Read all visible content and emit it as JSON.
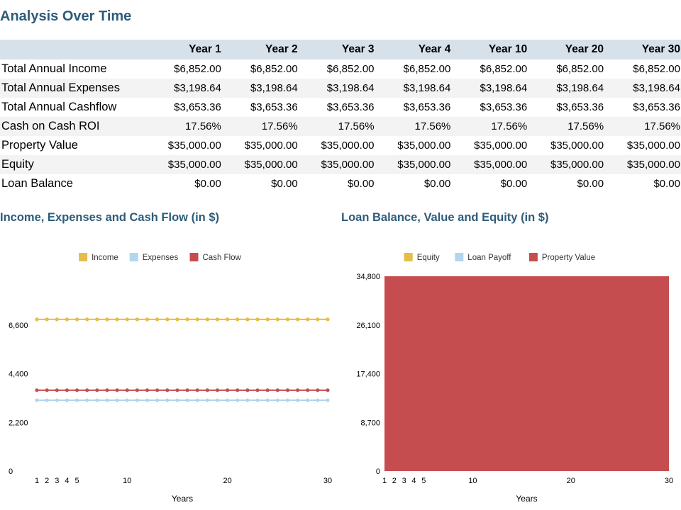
{
  "title": "Analysis Over Time",
  "table": {
    "columns": [
      "",
      "Year 1",
      "Year 2",
      "Year 3",
      "Year 4",
      "Year 10",
      "Year 20",
      "Year 30"
    ],
    "rows": [
      {
        "label": "Total Annual Income",
        "values": [
          "$6,852.00",
          "$6,852.00",
          "$6,852.00",
          "$6,852.00",
          "$6,852.00",
          "$6,852.00",
          "$6,852.00"
        ]
      },
      {
        "label": "Total Annual Expenses",
        "values": [
          "$3,198.64",
          "$3,198.64",
          "$3,198.64",
          "$3,198.64",
          "$3,198.64",
          "$3,198.64",
          "$3,198.64"
        ]
      },
      {
        "label": "Total Annual Cashflow",
        "values": [
          "$3,653.36",
          "$3,653.36",
          "$3,653.36",
          "$3,653.36",
          "$3,653.36",
          "$3,653.36",
          "$3,653.36"
        ]
      },
      {
        "label": "Cash on Cash ROI",
        "values": [
          "17.56%",
          "17.56%",
          "17.56%",
          "17.56%",
          "17.56%",
          "17.56%",
          "17.56%"
        ]
      },
      {
        "label": "Property Value",
        "values": [
          "$35,000.00",
          "$35,000.00",
          "$35,000.00",
          "$35,000.00",
          "$35,000.00",
          "$35,000.00",
          "$35,000.00"
        ]
      },
      {
        "label": "Equity",
        "values": [
          "$35,000.00",
          "$35,000.00",
          "$35,000.00",
          "$35,000.00",
          "$35,000.00",
          "$35,000.00",
          "$35,000.00"
        ]
      },
      {
        "label": "Loan Balance",
        "values": [
          "$0.00",
          "$0.00",
          "$0.00",
          "$0.00",
          "$0.00",
          "$0.00",
          "$0.00"
        ]
      }
    ]
  },
  "chart_data": [
    {
      "type": "line",
      "title": "Income, Expenses and Cash Flow (in $)",
      "xlabel": "Years",
      "ylabel": "",
      "x": [
        1,
        2,
        3,
        4,
        5,
        6,
        7,
        8,
        9,
        10,
        11,
        12,
        13,
        14,
        15,
        16,
        17,
        18,
        19,
        20,
        21,
        22,
        23,
        24,
        25,
        26,
        27,
        28,
        29,
        30
      ],
      "x_ticks": [
        1,
        2,
        3,
        4,
        5,
        10,
        20,
        30
      ],
      "xlim": [
        1,
        30
      ],
      "ylim": [
        0,
        8800
      ],
      "y_ticks": [
        0,
        2200,
        4400,
        6600
      ],
      "y_tick_labels": [
        "0",
        "2,200",
        "4,400",
        "6,600"
      ],
      "legend_position": "top-center",
      "grid": false,
      "series": [
        {
          "name": "Income",
          "color": "#e5bd4b",
          "values": [
            6852,
            6852,
            6852,
            6852,
            6852,
            6852,
            6852,
            6852,
            6852,
            6852,
            6852,
            6852,
            6852,
            6852,
            6852,
            6852,
            6852,
            6852,
            6852,
            6852,
            6852,
            6852,
            6852,
            6852,
            6852,
            6852,
            6852,
            6852,
            6852,
            6852
          ]
        },
        {
          "name": "Expenses",
          "color": "#b3d5ee",
          "values": [
            3198.64,
            3198.64,
            3198.64,
            3198.64,
            3198.64,
            3198.64,
            3198.64,
            3198.64,
            3198.64,
            3198.64,
            3198.64,
            3198.64,
            3198.64,
            3198.64,
            3198.64,
            3198.64,
            3198.64,
            3198.64,
            3198.64,
            3198.64,
            3198.64,
            3198.64,
            3198.64,
            3198.64,
            3198.64,
            3198.64,
            3198.64,
            3198.64,
            3198.64,
            3198.64
          ]
        },
        {
          "name": "Cash Flow",
          "color": "#c64d4f",
          "values": [
            3653.36,
            3653.36,
            3653.36,
            3653.36,
            3653.36,
            3653.36,
            3653.36,
            3653.36,
            3653.36,
            3653.36,
            3653.36,
            3653.36,
            3653.36,
            3653.36,
            3653.36,
            3653.36,
            3653.36,
            3653.36,
            3653.36,
            3653.36,
            3653.36,
            3653.36,
            3653.36,
            3653.36,
            3653.36,
            3653.36,
            3653.36,
            3653.36,
            3653.36,
            3653.36
          ]
        }
      ]
    },
    {
      "type": "area",
      "title": "Loan Balance, Value and Equity (in $)",
      "xlabel": "Years",
      "ylabel": "",
      "x_ticks": [
        1,
        2,
        3,
        4,
        5,
        10,
        20,
        30
      ],
      "xlim": [
        1,
        30
      ],
      "ylim": [
        0,
        34800
      ],
      "y_ticks": [
        0,
        8700,
        17400,
        26100,
        34800
      ],
      "y_tick_labels": [
        "0",
        "8,700",
        "17,400",
        "26,100",
        "34,800"
      ],
      "legend_position": "top-center",
      "grid": false,
      "series": [
        {
          "name": "Equity",
          "color": "#e5bd4b",
          "values": []
        },
        {
          "name": "Loan Payoff",
          "color": "#b3d5ee",
          "values": []
        },
        {
          "name": "Property Value",
          "color": "#c64d4f",
          "values": [
            35000,
            35000
          ]
        }
      ],
      "series_x": [
        1,
        30
      ]
    }
  ]
}
